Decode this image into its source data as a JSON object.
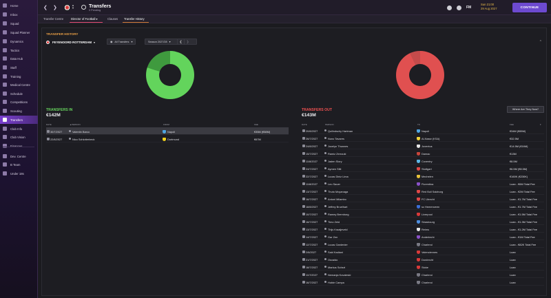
{
  "sidebar": {
    "items": [
      {
        "label": "Home"
      },
      {
        "label": "Inbox"
      },
      {
        "label": "Squad"
      },
      {
        "label": "Squad Planner"
      },
      {
        "label": "Dynamics"
      },
      {
        "label": "Tactics"
      },
      {
        "label": "Data Hub"
      },
      {
        "label": "Staff"
      },
      {
        "label": "Training"
      },
      {
        "label": "Medical Centre"
      },
      {
        "label": "Schedule"
      },
      {
        "label": "Competitions"
      },
      {
        "label": "Scouting"
      },
      {
        "label": "Transfers"
      },
      {
        "label": "Club Info"
      },
      {
        "label": "Club Vision"
      },
      {
        "label": "Finances"
      },
      {
        "label": "Dev. Centre"
      },
      {
        "label": "B Team"
      },
      {
        "label": "Under 18s"
      }
    ]
  },
  "topbar": {
    "title": "Transfers",
    "subtitle": "0 Pending",
    "fm_label": "FM",
    "date_line1": "Sun 21:00",
    "date_line2": "29 Aug 2027",
    "continue_label": "CONTINUE"
  },
  "tabs": [
    {
      "label": "Transfer Centre"
    },
    {
      "label": "Director of Football ▾"
    },
    {
      "label": "Clauses"
    },
    {
      "label": "Transfer History"
    }
  ],
  "panel": {
    "heading": "TRANSFER HISTORY",
    "club": "FEYENOORD ROTTERDAM",
    "filter": "All Transfers",
    "season": "Season 2027/28",
    "collapse": "⌃"
  },
  "chart_data": [
    {
      "type": "pie",
      "title": "",
      "values": [
        80,
        20
      ],
      "colors": [
        "#63d45c",
        "#3f9a3e"
      ]
    },
    {
      "type": "pie",
      "title": "",
      "values": [
        93,
        7
      ],
      "colors": [
        "#e05050",
        "#c44b4b"
      ]
    }
  ],
  "transfers_in": {
    "title": "TRANSFERS IN",
    "total": "€142M",
    "headers": {
      "date": "DATE",
      "person": "▲PERSON",
      "from": "FROM",
      "fee": "FEE"
    },
    "rows": [
      {
        "date": "30/7/2027",
        "person": "Valentin Barco",
        "club": "Napoli",
        "fee": "€35M (€58M)",
        "club_color": "#4fa7e3"
      },
      {
        "date": "22/8/2027",
        "person": "Nico Schlotterbeck",
        "club": "Dortmund",
        "fee": "€67M",
        "club_color": "#f2d21c"
      }
    ]
  },
  "transfers_out": {
    "title": "TRANSFERS OUT",
    "total": "€143M",
    "where_now_label": "Where Are They Now?",
    "headers": {
      "date": "DATE",
      "person": "PERSON",
      "to": "TO",
      "fee": "FEE"
    },
    "rows": [
      {
        "date": "20/8/2027",
        "person": "Quilindschy Hartman",
        "club": "Napoli",
        "fee": "€34M (€65M)",
        "club_color": "#4fa7e3"
      },
      {
        "date": "26/7/2027",
        "person": "Nuno Tavares",
        "club": "Al-Nassr (KSA)",
        "fee": "€32.5M",
        "club_color": "#f1d23a"
      },
      {
        "date": "24/8/2027",
        "person": "Jocelyn Thunnes",
        "club": "Juventus",
        "fee": "€14.5M (€16M)",
        "club_color": "#e8e8e8"
      },
      {
        "date": "15/7/2027",
        "person": "Ramiz Zerrouki",
        "club": "Damac",
        "fee": "€13M",
        "club_color": "#c8453b"
      },
      {
        "date": "11/8/2027",
        "person": "Jaden Slory",
        "club": "Coventry",
        "fee": "€8.5M",
        "club_color": "#5cb8e6"
      },
      {
        "date": "24/7/2027",
        "person": "Aymen Sliti",
        "club": "Stuttgart",
        "fee": "€6.5M (€8.5M)",
        "club_color": "#e04848"
      },
      {
        "date": "22/7/2027",
        "person": "Lucas Diniz Lima",
        "club": "Mechelen",
        "fee": "€160K (€230K)",
        "club_color": "#e8c23a"
      },
      {
        "date": "11/8/2027",
        "person": "Leo Sauer",
        "club": "Fiorentina",
        "fee": "Loan - €6M Total Fee",
        "club_color": "#8a52c8"
      },
      {
        "date": "13/7/2027",
        "person": "Thuto Moyanaga",
        "club": "Red Bull Salzburg",
        "fee": "Loan - €2M Total Fee",
        "club_color": "#e04848"
      },
      {
        "date": "16/7/2027",
        "person": "Antoni Milambo",
        "club": "FC Utrecht",
        "fee": "Loan - €1.7M Total Fee",
        "club_color": "#e04848"
      },
      {
        "date": "18/8/2027",
        "person": "Jeffrey Bruelhart",
        "club": "sc Heerenveen",
        "fee": "Loan - €1.7M Total Fee",
        "club_color": "#3b6fd8"
      },
      {
        "date": "10/7/2027",
        "person": "Ramey Bremborg",
        "club": "Liverpool",
        "fee": "Loan - €1.5M Total Fee",
        "club_color": "#d83a3a"
      },
      {
        "date": "16/7/2027",
        "person": "Timo Zeid",
        "club": "Strasbourg",
        "fee": "Loan - €1.3M Total Fee",
        "club_color": "#4f8fe0"
      },
      {
        "date": "13/7/2027",
        "person": "Thijs Kraaijeveld",
        "club": "Reims",
        "fee": "Loan - €1.2M Total Fee",
        "club_color": "#e8e8e8"
      },
      {
        "date": "14/7/2027",
        "person": "Gar Zen",
        "club": "Anderlecht",
        "fee": "Loan - €1M Total Fee",
        "club_color": "#8a52c8"
      },
      {
        "date": "12/7/2027",
        "person": "Lucas Gardenier",
        "club": "Charleroi",
        "fee": "Loan - €82K Total Fee",
        "club_color": "#7a7a84"
      },
      {
        "date": "2/8/2027",
        "person": "Said Kadiani",
        "club": "Valenciennes",
        "fee": "Loan",
        "club_color": "#d83a3a"
      },
      {
        "date": "21/7/2027",
        "person": "Osvaldo",
        "club": "Dordrecht",
        "fee": "Loan",
        "club_color": "#d83a3a"
      },
      {
        "date": "18/7/2027",
        "person": "Markus Sohsrt",
        "club": "Stoke",
        "fee": "Loan",
        "club_color": "#d83a3a"
      },
      {
        "date": "11/7/2027",
        "person": "Nemanja Kovaleski",
        "club": "Charleroi",
        "fee": "Loan",
        "club_color": "#7a7a84"
      },
      {
        "date": "16/7/2027",
        "person": "Hobie Campa",
        "club": "Charleroi",
        "fee": "Loan",
        "club_color": "#7a7a84"
      }
    ]
  }
}
